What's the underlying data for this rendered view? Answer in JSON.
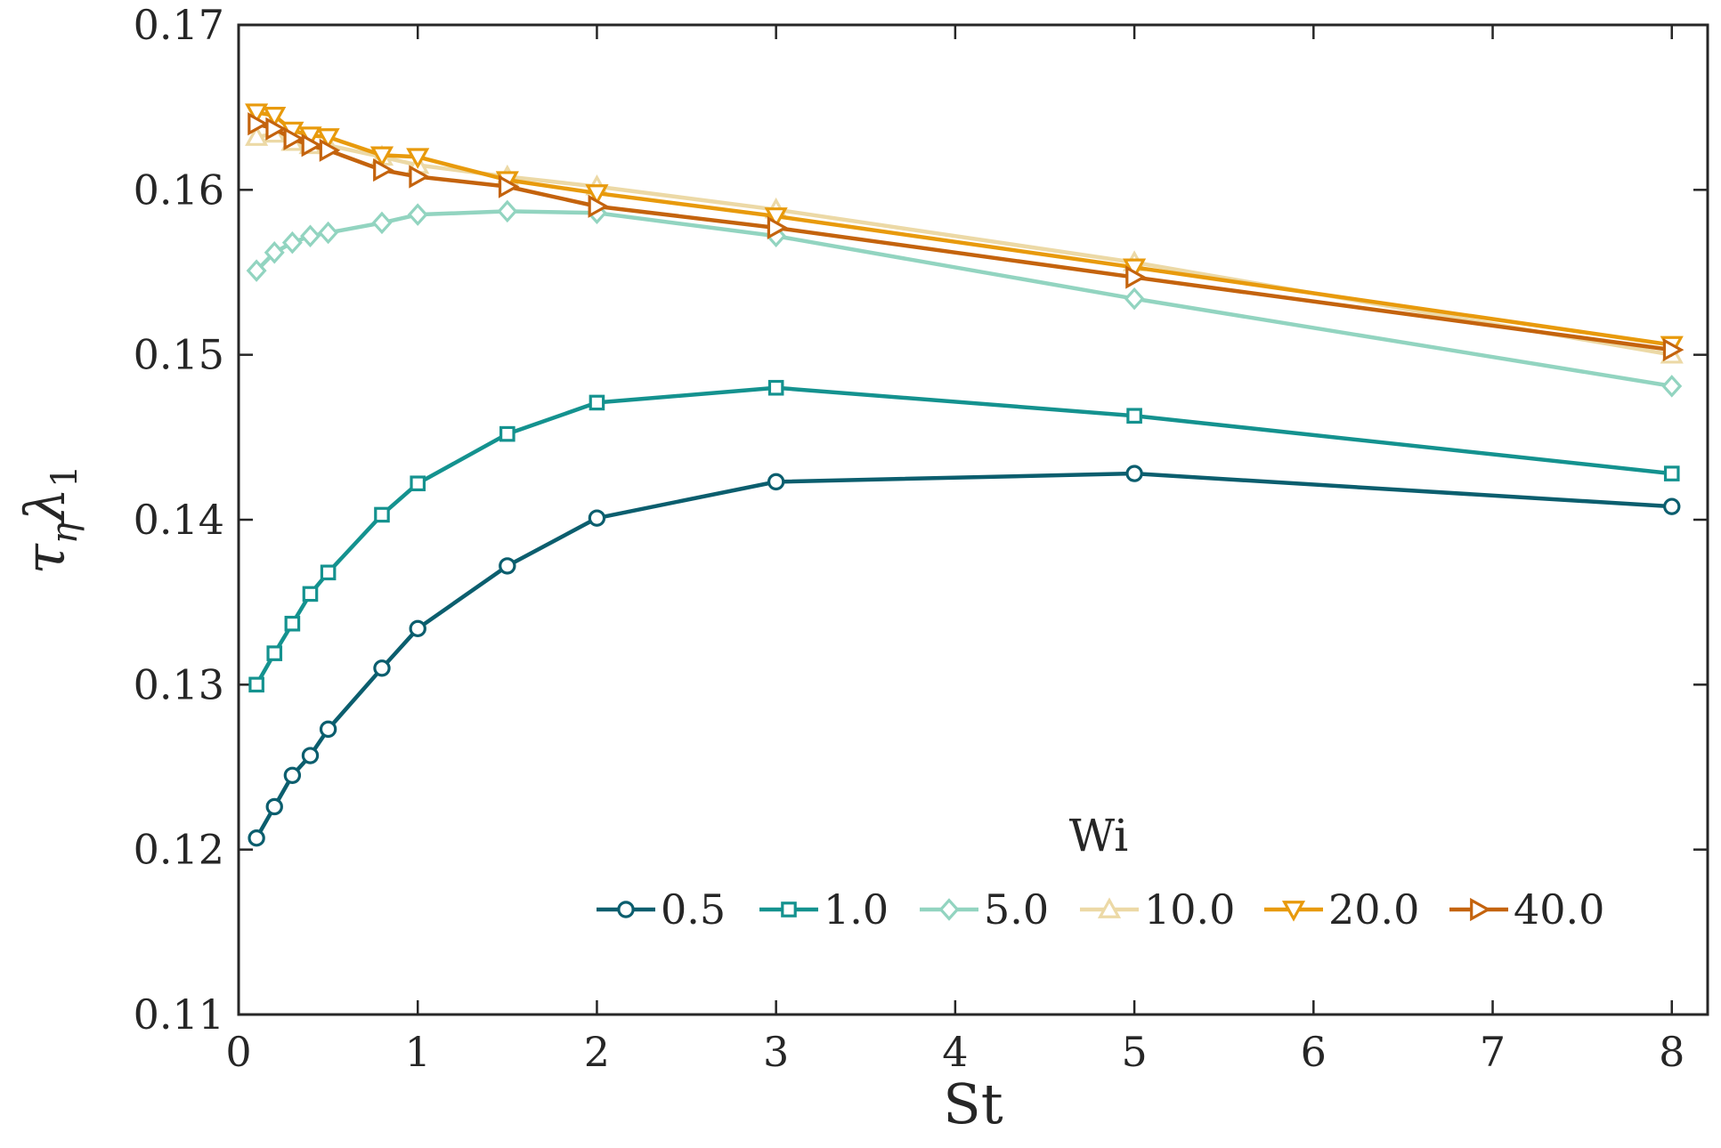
{
  "chart_data": {
    "type": "line",
    "xlabel": "St",
    "ylabel_main": "τ",
    "ylabel_sub1": "η",
    "ylabel_main2": "λ",
    "ylabel_sub2": "1",
    "xlim": [
      0,
      8.2
    ],
    "ylim": [
      0.11,
      0.17
    ],
    "x_ticks": [
      0,
      1,
      2,
      3,
      4,
      5,
      6,
      7,
      8
    ],
    "x_tick_labels": [
      "0",
      "1",
      "2",
      "3",
      "4",
      "5",
      "6",
      "7",
      "8"
    ],
    "y_ticks": [
      0.11,
      0.12,
      0.13,
      0.14,
      0.15,
      0.16,
      0.17
    ],
    "y_tick_labels": [
      "0.11",
      "0.12",
      "0.13",
      "0.14",
      "0.15",
      "0.16",
      "0.17"
    ],
    "legend_title": "Wi",
    "legend_position": "bottom-right",
    "x": [
      0.1,
      0.2,
      0.3,
      0.4,
      0.5,
      0.8,
      1.0,
      1.5,
      2.0,
      3.0,
      5.0,
      8.0
    ],
    "series": [
      {
        "name": "0.5",
        "color": "#0b5e6e",
        "marker": "circle",
        "values": [
          0.1207,
          0.1226,
          0.1245,
          0.1257,
          0.1273,
          0.131,
          0.1334,
          0.1372,
          0.1401,
          0.1423,
          0.1428,
          0.1408
        ]
      },
      {
        "name": "1.0",
        "color": "#14928f",
        "marker": "square",
        "values": [
          0.13,
          0.1319,
          0.1337,
          0.1355,
          0.1368,
          0.1403,
          0.1422,
          0.1452,
          0.1471,
          0.148,
          0.1463,
          0.1428
        ]
      },
      {
        "name": "5.0",
        "color": "#92d4c0",
        "marker": "diamond",
        "values": [
          0.1551,
          0.1562,
          0.1568,
          0.1572,
          0.1574,
          0.158,
          0.1585,
          0.1587,
          0.1586,
          0.1572,
          0.1534,
          0.1481
        ]
      },
      {
        "name": "10.0",
        "color": "#ecd9a6",
        "marker": "triangle-up",
        "values": [
          0.1632,
          0.1634,
          0.1629,
          0.1627,
          0.1627,
          0.162,
          0.1615,
          0.1608,
          0.1602,
          0.1588,
          0.1556,
          0.15
        ]
      },
      {
        "name": "20.0",
        "color": "#e89a0c",
        "marker": "triangle-down",
        "values": [
          0.1647,
          0.1645,
          0.1636,
          0.1633,
          0.1632,
          0.1621,
          0.162,
          0.1606,
          0.1598,
          0.1584,
          0.1553,
          0.1506
        ]
      },
      {
        "name": "40.0",
        "color": "#c4630d",
        "marker": "triangle-right",
        "values": [
          0.164,
          0.1637,
          0.1631,
          0.1627,
          0.1624,
          0.1612,
          0.1608,
          0.1602,
          0.159,
          0.1577,
          0.1547,
          0.1503
        ]
      }
    ]
  }
}
